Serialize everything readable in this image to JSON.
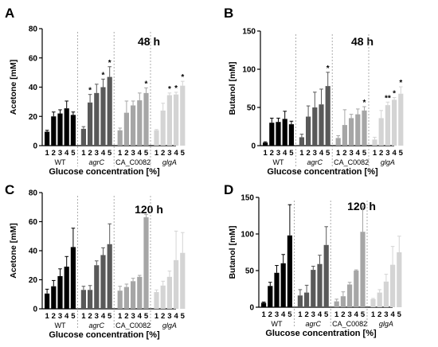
{
  "chart_data": [
    {
      "type": "bar",
      "panel_label": "A",
      "title": "48 h",
      "ylabel": "Acetone [mM]",
      "xlabel": "Glucose concentration [%]",
      "ylim": [
        0,
        80
      ],
      "yticks": [
        0,
        20,
        40,
        60,
        80
      ],
      "categories": [
        "1",
        "2",
        "3",
        "4",
        "5"
      ],
      "series": [
        {
          "name": "WT",
          "values": [
            9.5,
            20,
            22,
            25.5,
            21
          ],
          "errors": [
            1,
            3,
            2.5,
            5,
            2
          ],
          "stars": [
            "",
            "",
            "",
            "",
            ""
          ]
        },
        {
          "name": "agrC",
          "values": [
            11.5,
            29.5,
            36,
            40,
            47
          ],
          "errors": [
            1.5,
            5.5,
            6,
            5.5,
            7
          ],
          "stars": [
            "",
            "*",
            "",
            "*",
            "*"
          ]
        },
        {
          "name": "CA_C0082",
          "values": [
            10.5,
            22.5,
            27.5,
            31,
            36
          ],
          "errors": [
            1.5,
            8,
            3,
            5,
            3.5
          ],
          "stars": [
            "",
            "",
            "",
            "",
            "*"
          ]
        },
        {
          "name": "glgA",
          "values": [
            10.5,
            24,
            34.5,
            35,
            41
          ],
          "errors": [
            0.5,
            5,
            1.5,
            1.5,
            3
          ],
          "stars": [
            "",
            "",
            "*",
            "*",
            "*"
          ]
        }
      ]
    },
    {
      "type": "bar",
      "panel_label": "B",
      "title": "48 h",
      "ylabel": "Butanol [mM]",
      "xlabel": "Glucose concentration [%]",
      "ylim": [
        0,
        150
      ],
      "yticks": [
        0,
        50,
        100,
        150
      ],
      "categories": [
        "1",
        "2",
        "3",
        "4",
        "5"
      ],
      "series": [
        {
          "name": "WT",
          "values": [
            4,
            30,
            31,
            35,
            28
          ],
          "errors": [
            1,
            6,
            5,
            10,
            4
          ],
          "stars": [
            "",
            "",
            "",
            "",
            ""
          ]
        },
        {
          "name": "agrC",
          "values": [
            11,
            38,
            50,
            54,
            78
          ],
          "errors": [
            4,
            14,
            20,
            20,
            18
          ],
          "stars": [
            "",
            "",
            "",
            "",
            "*"
          ]
        },
        {
          "name": "CA_C0082",
          "values": [
            10,
            27,
            36,
            41,
            46
          ],
          "errors": [
            3,
            20,
            5,
            7,
            5
          ],
          "stars": [
            "",
            "",
            "",
            "",
            "*"
          ]
        },
        {
          "name": "glgA",
          "values": [
            8,
            36,
            53,
            60,
            68
          ],
          "errors": [
            3,
            10,
            4,
            3,
            9
          ],
          "stars": [
            "",
            "",
            "**",
            "*",
            "*"
          ]
        }
      ]
    },
    {
      "type": "bar",
      "panel_label": "C",
      "title": "120 h",
      "ylabel": "Acetone [mM]",
      "xlabel": "Glucose concentration [%]",
      "ylim": [
        0,
        80
      ],
      "yticks": [
        0,
        20,
        40,
        60,
        80
      ],
      "categories": [
        "1",
        "2",
        "3",
        "4",
        "5"
      ],
      "series": [
        {
          "name": "WT",
          "values": [
            10.5,
            15.5,
            22.5,
            29,
            42.5
          ],
          "errors": [
            3,
            4,
            5,
            7,
            13
          ],
          "stars": [
            "",
            "",
            "",
            "",
            ""
          ]
        },
        {
          "name": "agrC",
          "values": [
            13,
            13,
            30,
            37,
            44.5
          ],
          "errors": [
            2.5,
            3,
            3,
            5,
            14
          ],
          "stars": [
            "",
            "",
            "",
            "",
            ""
          ]
        },
        {
          "name": "CA_C0082",
          "values": [
            12.5,
            15,
            19,
            22,
            63
          ],
          "errors": [
            3,
            2,
            2,
            1,
            2
          ],
          "stars": [
            "",
            "",
            "",
            "",
            ""
          ]
        },
        {
          "name": "glgA",
          "values": [
            11.5,
            16,
            22,
            33.5,
            38.5
          ],
          "errors": [
            1.5,
            3,
            4,
            20,
            14
          ],
          "stars": [
            "",
            "",
            "",
            "",
            ""
          ]
        }
      ]
    },
    {
      "type": "bar",
      "panel_label": "D",
      "title": "120 h",
      "ylabel": "Butanol [mM]",
      "xlabel": "Glucose concentration [%]",
      "ylim": [
        0,
        150
      ],
      "yticks": [
        0,
        50,
        100,
        150
      ],
      "categories": [
        "1",
        "2",
        "3",
        "4",
        "5"
      ],
      "series": [
        {
          "name": "WT",
          "values": [
            6,
            29,
            47,
            60,
            98
          ],
          "errors": [
            1,
            5,
            10,
            12,
            42
          ],
          "stars": [
            "",
            "",
            "",
            "",
            ""
          ]
        },
        {
          "name": "agrC",
          "values": [
            16,
            20,
            51,
            59,
            85
          ],
          "errors": [
            8,
            10,
            5,
            12,
            25
          ],
          "stars": [
            "",
            "",
            "",
            "",
            ""
          ]
        },
        {
          "name": "CA_C0082",
          "values": [
            8,
            15,
            31,
            50,
            103
          ],
          "errors": [
            3,
            6,
            3,
            1,
            35
          ],
          "stars": [
            "",
            "",
            "",
            "",
            ""
          ]
        },
        {
          "name": "glgA",
          "values": [
            11,
            20,
            35,
            58,
            75
          ],
          "errors": [
            1,
            4,
            10,
            25,
            22
          ],
          "stars": [
            "",
            "",
            "",
            "",
            ""
          ]
        }
      ]
    }
  ],
  "colors": {
    "WT": "#000000",
    "agrC": "#595959",
    "CA_C0082": "#a6a6a6",
    "glgA": "#d4d4d4",
    "axis": "#000000",
    "separator": "#9a9a9a"
  }
}
